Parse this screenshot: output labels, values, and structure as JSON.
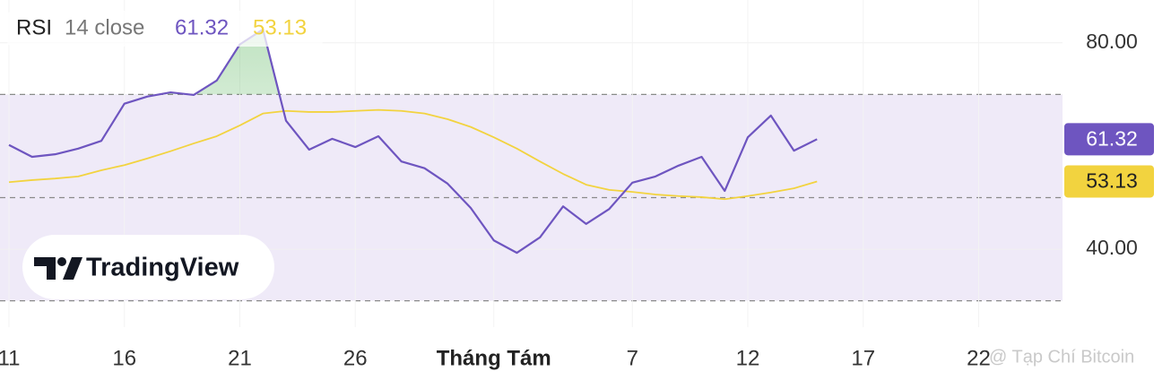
{
  "chart_data": {
    "type": "line",
    "indicator": "RSI",
    "params": "14 close",
    "logo": "TradingView",
    "watermark": "@ Tạp Chí Bitcoin",
    "categories": [
      "11",
      null,
      null,
      null,
      null,
      "16",
      null,
      null,
      null,
      null,
      "21",
      null,
      null,
      null,
      null,
      "26",
      null,
      null,
      null,
      null,
      null,
      "Tháng Tám",
      null,
      null,
      null,
      null,
      null,
      "7",
      null,
      null,
      null,
      null,
      "12",
      null,
      null,
      null,
      null,
      "17",
      null,
      null,
      null,
      null,
      "22"
    ],
    "series": [
      {
        "color": "#6e55c0",
        "values": [
          60.2,
          57.9,
          58.4,
          59.5,
          61.0,
          68.2,
          69.6,
          70.4,
          69.9,
          72.7,
          79.7,
          82.6,
          64.9,
          59.3,
          61.4,
          59.8,
          61.9,
          57.0,
          55.7,
          52.7,
          48.0,
          41.7,
          39.3,
          42.3,
          48.3,
          44.9,
          47.8,
          52.9,
          54.1,
          56.2,
          57.9,
          51.3,
          61.7,
          65.9,
          59.1,
          61.32,
          null,
          null,
          null,
          null,
          null,
          null,
          null
        ],
        "value_labels": {
          "35": "61.32"
        }
      },
      {
        "color": "#f2d33f",
        "values": [
          53.0,
          53.4,
          53.7,
          54.1,
          55.3,
          56.3,
          57.6,
          59.0,
          60.5,
          61.9,
          64.0,
          66.3,
          66.8,
          66.6,
          66.6,
          66.8,
          67.0,
          66.8,
          66.3,
          65.2,
          63.7,
          61.7,
          59.5,
          57.0,
          54.6,
          52.5,
          51.5,
          51.1,
          50.6,
          50.3,
          50.1,
          49.7,
          50.3,
          51.0,
          51.8,
          53.13,
          null,
          null,
          null,
          null,
          null,
          null,
          null
        ],
        "value_labels": {
          "35": "53.13"
        }
      }
    ],
    "bands": {
      "upper": 70,
      "middle": 50,
      "lower": 30,
      "color": "#efeaf8"
    },
    "ylim": [
      24.9,
      88.3
    ],
    "yticks": [
      {
        "value": 40,
        "label": "40.00"
      },
      {
        "value": 80,
        "label": "80.00"
      }
    ],
    "grid": true
  }
}
